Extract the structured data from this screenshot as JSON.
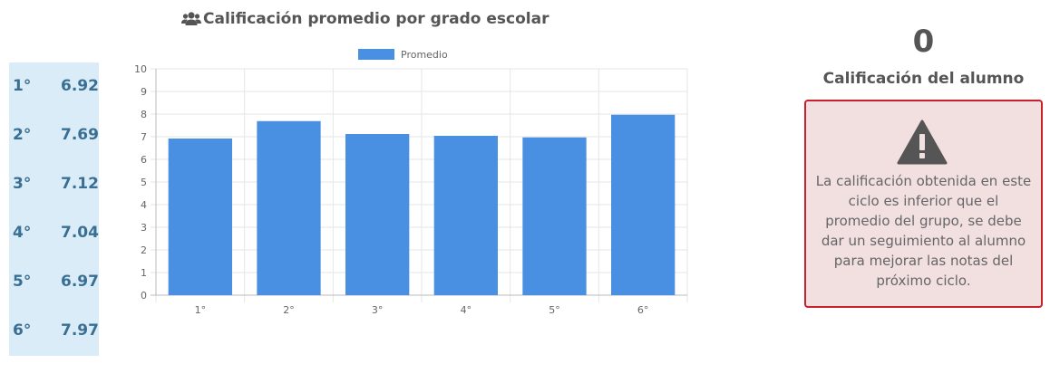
{
  "header": {
    "title": "Calificación promedio por grado escolar",
    "icon": "users-icon"
  },
  "averages_table": [
    {
      "grade": "1°",
      "value": "6.92"
    },
    {
      "grade": "2°",
      "value": "7.69"
    },
    {
      "grade": "3°",
      "value": "7.12"
    },
    {
      "grade": "4°",
      "value": "7.04"
    },
    {
      "grade": "5°",
      "value": "6.97"
    },
    {
      "grade": "6°",
      "value": "7.97"
    }
  ],
  "chart_data": {
    "type": "bar",
    "categories": [
      "1°",
      "2°",
      "3°",
      "4°",
      "5°",
      "6°"
    ],
    "series": [
      {
        "name": "Promedio",
        "values": [
          6.92,
          7.69,
          7.12,
          7.04,
          6.97,
          7.97
        ],
        "color": "#4a90e2"
      }
    ],
    "ylim": [
      0,
      10
    ],
    "yticks": [
      0,
      1,
      2,
      3,
      4,
      5,
      6,
      7,
      8,
      9,
      10
    ],
    "grid": true,
    "legend": "top-center"
  },
  "student": {
    "score": "0",
    "label": "Calificación del alumno"
  },
  "alert": {
    "icon": "warning-icon",
    "message": "La calificación obtenida en este ciclo es inferior que el promedio del grupo, se debe dar un seguimiento al alumno para mejorar las notas del próximo ciclo.",
    "background": "#f2dfe0",
    "border_color": "#c9202f"
  }
}
